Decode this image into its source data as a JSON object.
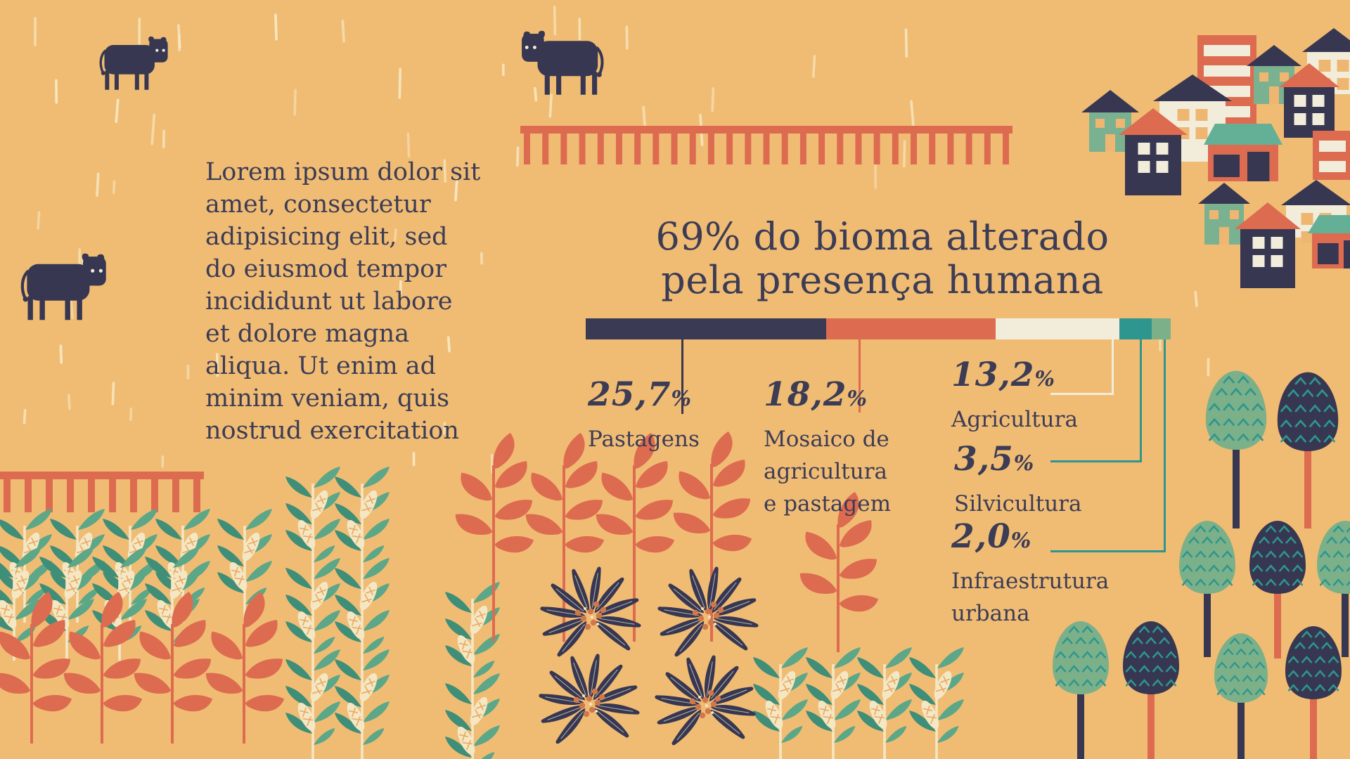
{
  "title": {
    "line1": "69% do bioma alterado",
    "line2": "pela presença humana"
  },
  "intro_text": "Lorem ipsum dolor sit\namet, consectetur\nadipisicing elit, sed\ndo eiusmod tempor\nincididunt ut labore\net dolore magna\naliqua. Ut enim ad\nminim veniam, quis\nnostrud exercitation",
  "chart_data": {
    "type": "bar",
    "stacked": true,
    "title": "69% do bioma alterado pela presença humana",
    "total_altered_pct": 69,
    "unit": "%",
    "segments": [
      {
        "label": "Pastagens",
        "value": 25.7,
        "value_display": "25,7",
        "name_display": "Pastagens",
        "color": "#3A3A54"
      },
      {
        "label": "Mosaico de agricultura e pastagem",
        "value": 18.2,
        "value_display": "18,2",
        "name_display": "Mosaico de\nagricultura\ne pastagem",
        "color": "#DD6B50"
      },
      {
        "label": "Agricultura",
        "value": 13.2,
        "value_display": "13,2",
        "name_display": "Agricultura",
        "color": "#F2EDDA"
      },
      {
        "label": "Silvicultura",
        "value": 3.5,
        "value_display": "3,5",
        "name_display": "Silvicultura",
        "color": "#2E968F"
      },
      {
        "label": "Infraestrutura urbana",
        "value": 2.0,
        "value_display": "2,0",
        "name_display": "Infraestrutura\nurbana",
        "color": "#7CB089"
      }
    ]
  },
  "colors": {
    "background": "#F0BC74",
    "navy": "#373751",
    "text_navy": "#3C3C55",
    "salmon": "#DD6B50",
    "cream": "#F2EDDA",
    "teal": "#2E968F",
    "sage": "#7CB089",
    "house_teal": "#79B191",
    "shop_roof": "#63B096",
    "window_orange": "#EFB671",
    "rain": "#F7E9C4",
    "corn_leaf": "#5CA788",
    "corn_leaf_dark": "#3F8E78",
    "corn_cob": "#F4E7C3",
    "cob_hatch": "#EBA761",
    "berry": "#D0784B"
  }
}
